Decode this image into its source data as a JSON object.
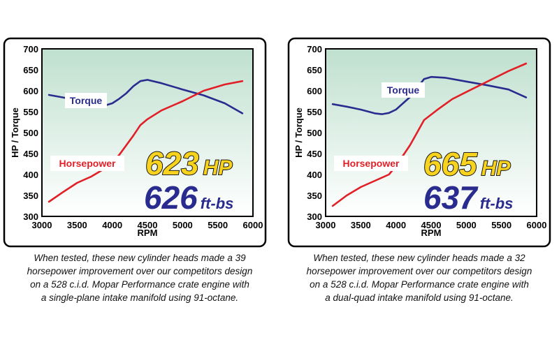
{
  "chart_data": [
    {
      "type": "line",
      "xlabel": "RPM",
      "ylabel": "HP / Torque",
      "xlim": [
        3000,
        6000
      ],
      "ylim": [
        300,
        700
      ],
      "xticks": [
        "3000",
        "3500",
        "4000",
        "4500",
        "5000",
        "5500",
        "6000"
      ],
      "yticks": [
        "300",
        "350",
        "400",
        "450",
        "500",
        "550",
        "600",
        "650",
        "700"
      ],
      "grid": false,
      "series": [
        {
          "name": "Torque",
          "color": "#2a2b8f",
          "x": [
            3100,
            3300,
            3500,
            3700,
            3900,
            4000,
            4100,
            4200,
            4300,
            4400,
            4500,
            4700,
            5000,
            5300,
            5600,
            5850
          ],
          "y": [
            590,
            584,
            577,
            569,
            565,
            570,
            581,
            594,
            611,
            623,
            626,
            618,
            603,
            589,
            570,
            546
          ]
        },
        {
          "name": "Horsepower",
          "color": "#e21f26",
          "x": [
            3100,
            3300,
            3500,
            3700,
            3900,
            4000,
            4100,
            4200,
            4300,
            4400,
            4500,
            4700,
            5000,
            5300,
            5600,
            5850
          ],
          "y": [
            335,
            358,
            380,
            395,
            415,
            430,
            447,
            470,
            493,
            518,
            532,
            553,
            575,
            600,
            615,
            623
          ]
        }
      ],
      "badges": {
        "hp": "623",
        "hp_unit": "HP",
        "tq": "626",
        "tq_unit": "ft-bs"
      },
      "caption": [
        "When tested, these new cylinder heads made a 39",
        "horsepower improvement over our competitors design",
        "on a 528 c.i.d. Mopar Performance crate engine with",
        "a single-plane intake manifold using 91-octane."
      ]
    },
    {
      "type": "line",
      "xlabel": "RPM",
      "ylabel": "HP / Torque",
      "xlim": [
        3000,
        6000
      ],
      "ylim": [
        300,
        700
      ],
      "xticks": [
        "3000",
        "3500",
        "4000",
        "4500",
        "5000",
        "5500",
        "6000"
      ],
      "yticks": [
        "300",
        "350",
        "400",
        "450",
        "500",
        "550",
        "600",
        "650",
        "700"
      ],
      "grid": false,
      "series": [
        {
          "name": "Torque",
          "color": "#2a2b8f",
          "x": [
            3100,
            3300,
            3500,
            3700,
            3800,
            3900,
            4000,
            4200,
            4400,
            4500,
            4700,
            5000,
            5300,
            5600,
            5850
          ],
          "y": [
            568,
            562,
            555,
            546,
            544,
            547,
            555,
            585,
            628,
            633,
            631,
            622,
            613,
            603,
            584
          ]
        },
        {
          "name": "Horsepower",
          "color": "#e21f26",
          "x": [
            3100,
            3300,
            3500,
            3700,
            3900,
            4000,
            4100,
            4200,
            4300,
            4400,
            4600,
            4800,
            5000,
            5300,
            5600,
            5850
          ],
          "y": [
            325,
            350,
            370,
            385,
            400,
            420,
            445,
            470,
            500,
            530,
            556,
            580,
            597,
            622,
            647,
            665
          ]
        }
      ],
      "badges": {
        "hp": "665",
        "hp_unit": "HP",
        "tq": "637",
        "tq_unit": "ft-bs"
      },
      "caption": [
        "When tested, these new cylinder heads made a 32",
        "horsepower improvement over our competitors design",
        "on a 528 c.i.d. Mopar Performance crate engine with",
        "a dual-quad intake manifold using 91-octane."
      ]
    }
  ]
}
